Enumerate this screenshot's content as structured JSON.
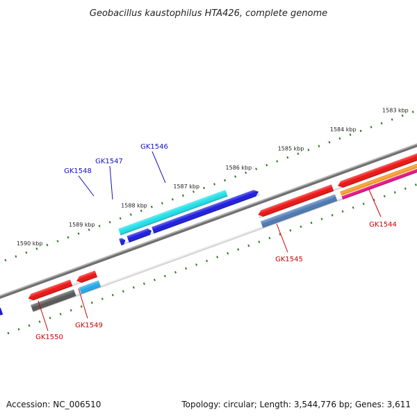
{
  "title": "Geobacillus kaustophilus HTA426, complete genome",
  "footer": {
    "accession": "Accession: NC_006510",
    "summary": "Topology: circular; Length: 3,544,776 bp; Genes: 3,611"
  },
  "colors": {
    "backbone": "#8a8a8a",
    "tick": "#2e7d1e",
    "label_top": "#1010c0",
    "label_bottom": "#cc0000"
  },
  "ruler": {
    "top_labels": [
      "1583 kbp",
      "1584 kbp",
      "1585 kbp",
      "1586 kbp",
      "1587 kbp",
      "1588 kbp",
      "1589 kbp",
      "1590 kbp"
    ]
  },
  "genes": [
    {
      "name": "GK1544",
      "strand": "reverse",
      "label_side": "bottom",
      "color": "#ee1111"
    },
    {
      "name": "GK1545",
      "strand": "reverse",
      "label_side": "bottom",
      "color": "#ee1111"
    },
    {
      "name": "GK1546",
      "strand": "forward",
      "label_side": "top",
      "color": "#1a1adf"
    },
    {
      "name": "GK1547",
      "strand": "forward",
      "label_side": "top",
      "color": "#1a1adf"
    },
    {
      "name": "GK1548",
      "strand": "forward",
      "label_side": "top",
      "color": "#1a1adf"
    },
    {
      "name": "GK1549",
      "strand": "reverse",
      "label_side": "bottom",
      "color": "#ee1111"
    },
    {
      "name": "GK1550",
      "strand": "reverse",
      "label_side": "bottom",
      "color": "#ee1111"
    }
  ]
}
